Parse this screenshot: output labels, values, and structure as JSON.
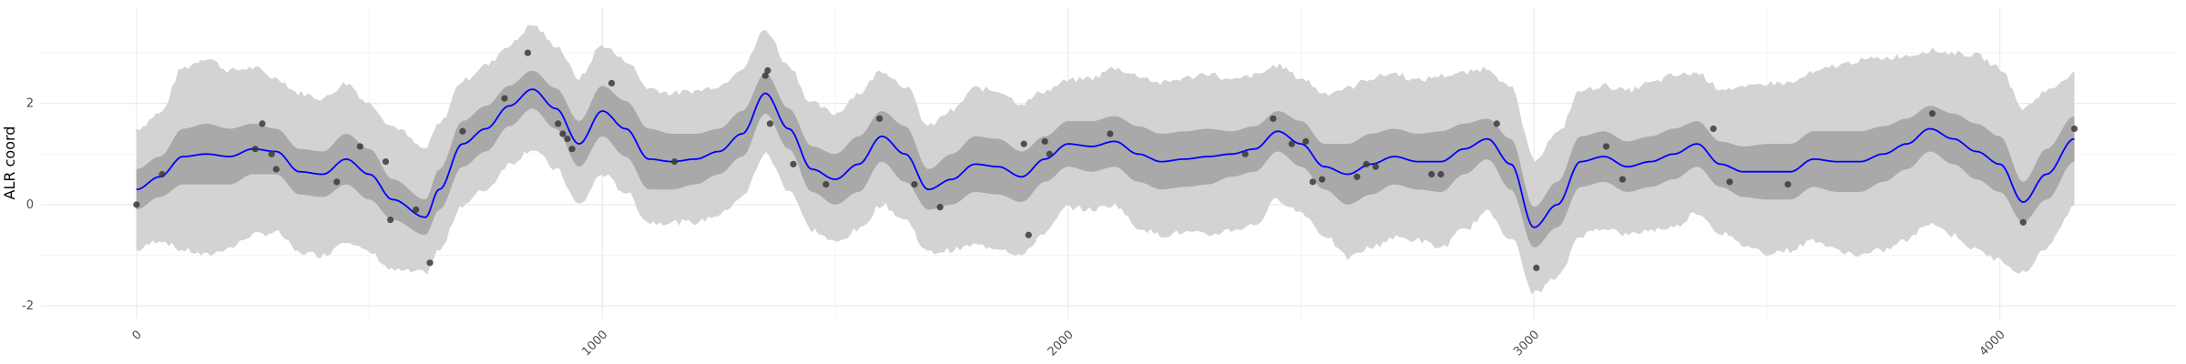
{
  "chart_data": {
    "type": "line",
    "title": "",
    "xlabel": "",
    "ylabel": "ALR coord",
    "xlim": [
      -205,
      4380
    ],
    "ylim": [
      -2.25,
      3.9
    ],
    "x_ticks": [
      0,
      1000,
      2000,
      3000,
      4000
    ],
    "x_tick_labels": [
      "0",
      "1000",
      "2000",
      "3000",
      "4000"
    ],
    "y_ticks": [
      -2,
      0,
      2
    ],
    "y_tick_labels": [
      "-2",
      "0",
      "2"
    ],
    "grid": true,
    "legend": "none",
    "colors": {
      "mean_line": "#0000ff",
      "inner_band": "#a9a9a9",
      "outer_band": "#d3d3d3",
      "points": "#3a3a3a",
      "grid": "#ebebeb",
      "background": "#ffffff"
    },
    "series": [
      {
        "role": "mean",
        "x": [
          0,
          50,
          100,
          150,
          200,
          250,
          300,
          350,
          400,
          450,
          500,
          550,
          620,
          650,
          700,
          750,
          800,
          850,
          900,
          950,
          1000,
          1050,
          1100,
          1150,
          1200,
          1250,
          1300,
          1350,
          1400,
          1450,
          1500,
          1550,
          1600,
          1650,
          1700,
          1750,
          1800,
          1850,
          1900,
          1950,
          2000,
          2050,
          2100,
          2150,
          2200,
          2250,
          2300,
          2350,
          2400,
          2450,
          2500,
          2550,
          2600,
          2650,
          2700,
          2750,
          2800,
          2850,
          2900,
          2950,
          3000,
          3050,
          3100,
          3150,
          3200,
          3250,
          3300,
          3350,
          3400,
          3450,
          3500,
          3550,
          3600,
          3650,
          3700,
          3750,
          3800,
          3850,
          3900,
          3950,
          4000,
          4050,
          4100,
          4160
        ],
        "y": [
          0.3,
          0.55,
          0.95,
          1.0,
          0.95,
          1.1,
          1.05,
          0.65,
          0.6,
          0.9,
          0.6,
          0.1,
          -0.25,
          0.3,
          1.2,
          1.5,
          1.95,
          2.28,
          1.9,
          1.2,
          1.85,
          1.5,
          0.9,
          0.85,
          0.9,
          1.05,
          1.4,
          2.2,
          1.5,
          0.7,
          0.5,
          0.8,
          1.35,
          1.0,
          0.3,
          0.5,
          0.8,
          0.75,
          0.55,
          0.9,
          1.2,
          1.15,
          1.25,
          1.0,
          0.85,
          0.9,
          0.95,
          1.0,
          1.1,
          1.45,
          1.2,
          0.75,
          0.6,
          0.8,
          0.95,
          0.85,
          0.85,
          1.1,
          1.3,
          0.8,
          -0.45,
          0.0,
          0.85,
          0.95,
          0.75,
          0.85,
          1.0,
          1.2,
          0.8,
          0.65,
          0.65,
          0.65,
          0.9,
          0.85,
          0.85,
          1.0,
          1.2,
          1.5,
          1.3,
          1.05,
          0.8,
          0.05,
          0.6,
          1.3
        ]
      },
      {
        "role": "inner_band",
        "x": [
          0,
          50,
          100,
          150,
          200,
          250,
          300,
          350,
          400,
          450,
          500,
          550,
          620,
          650,
          700,
          750,
          800,
          850,
          900,
          950,
          1000,
          1050,
          1100,
          1150,
          1200,
          1250,
          1300,
          1350,
          1400,
          1450,
          1500,
          1550,
          1600,
          1650,
          1700,
          1750,
          1800,
          1850,
          1900,
          1950,
          2000,
          2050,
          2100,
          2150,
          2200,
          2250,
          2300,
          2350,
          2400,
          2450,
          2500,
          2550,
          2600,
          2650,
          2700,
          2750,
          2800,
          2850,
          2900,
          2950,
          3000,
          3050,
          3100,
          3150,
          3200,
          3250,
          3300,
          3350,
          3400,
          3450,
          3500,
          3550,
          3600,
          3650,
          3700,
          3750,
          3800,
          3850,
          3900,
          3950,
          4000,
          4050,
          4100,
          4160
        ],
        "lower": [
          -0.1,
          0.15,
          0.4,
          0.4,
          0.4,
          0.6,
          0.6,
          0.2,
          0.15,
          0.4,
          0.1,
          -0.3,
          -0.6,
          -0.1,
          0.75,
          1.05,
          1.55,
          1.9,
          1.5,
          0.75,
          1.35,
          0.95,
          0.3,
          0.3,
          0.4,
          0.6,
          0.95,
          1.8,
          1.1,
          0.25,
          0.0,
          0.25,
          0.85,
          0.45,
          -0.1,
          0.0,
          0.25,
          0.2,
          0.05,
          0.45,
          0.75,
          0.65,
          0.75,
          0.45,
          0.3,
          0.35,
          0.4,
          0.55,
          0.65,
          1.05,
          0.75,
          0.3,
          0.0,
          0.2,
          0.4,
          0.3,
          0.25,
          0.6,
          0.9,
          0.3,
          -0.85,
          -0.45,
          0.35,
          0.45,
          0.25,
          0.35,
          0.5,
          0.75,
          0.35,
          0.15,
          0.1,
          0.1,
          0.35,
          0.25,
          0.25,
          0.45,
          0.7,
          1.05,
          0.8,
          0.5,
          0.25,
          -0.35,
          0.1,
          0.85
        ],
        "upper": [
          0.7,
          0.95,
          1.5,
          1.6,
          1.5,
          1.6,
          1.5,
          1.1,
          1.05,
          1.4,
          1.1,
          0.5,
          0.1,
          0.7,
          1.65,
          1.95,
          2.35,
          2.65,
          2.3,
          1.65,
          2.35,
          2.05,
          1.5,
          1.4,
          1.4,
          1.5,
          1.85,
          2.6,
          1.9,
          1.15,
          1.0,
          1.35,
          1.85,
          1.55,
          0.7,
          1.0,
          1.35,
          1.3,
          1.05,
          1.35,
          1.65,
          1.65,
          1.75,
          1.55,
          1.4,
          1.45,
          1.5,
          1.45,
          1.55,
          1.85,
          1.65,
          1.2,
          1.2,
          1.4,
          1.5,
          1.4,
          1.45,
          1.6,
          1.7,
          1.3,
          -0.05,
          0.45,
          1.35,
          1.45,
          1.25,
          1.35,
          1.5,
          1.65,
          1.25,
          1.15,
          1.2,
          1.2,
          1.45,
          1.45,
          1.45,
          1.55,
          1.7,
          1.95,
          1.8,
          1.6,
          1.35,
          0.45,
          1.1,
          1.75
        ]
      },
      {
        "role": "outer_band",
        "x": [
          0,
          50,
          100,
          150,
          200,
          250,
          300,
          350,
          400,
          450,
          500,
          550,
          620,
          650,
          700,
          750,
          800,
          850,
          900,
          950,
          1000,
          1050,
          1100,
          1150,
          1200,
          1250,
          1300,
          1350,
          1400,
          1450,
          1500,
          1550,
          1600,
          1650,
          1700,
          1750,
          1800,
          1850,
          1900,
          1950,
          2000,
          2050,
          2100,
          2150,
          2200,
          2250,
          2300,
          2350,
          2400,
          2450,
          2500,
          2550,
          2600,
          2650,
          2700,
          2750,
          2800,
          2850,
          2900,
          2950,
          3000,
          3050,
          3100,
          3150,
          3200,
          3250,
          3300,
          3350,
          3400,
          3450,
          3500,
          3550,
          3600,
          3650,
          3700,
          3750,
          3800,
          3850,
          3900,
          3950,
          4000,
          4050,
          4100,
          4160
        ],
        "lower": [
          -0.9,
          -0.7,
          -0.9,
          -1.0,
          -0.85,
          -0.6,
          -0.55,
          -0.95,
          -1.0,
          -0.7,
          -0.95,
          -1.3,
          -1.35,
          -0.9,
          0.0,
          0.3,
          0.8,
          1.1,
          0.7,
          0.0,
          0.6,
          0.25,
          -0.35,
          -0.35,
          -0.35,
          -0.2,
          0.15,
          1.0,
          0.3,
          -0.5,
          -0.75,
          -0.5,
          0.0,
          -0.3,
          -0.95,
          -0.9,
          -0.8,
          -0.85,
          -1.0,
          -0.55,
          -0.05,
          -0.1,
          0.0,
          -0.45,
          -0.6,
          -0.55,
          -0.6,
          -0.5,
          -0.4,
          0.1,
          -0.15,
          -0.6,
          -1.05,
          -0.85,
          -0.65,
          -0.7,
          -0.85,
          -0.5,
          -0.15,
          -0.65,
          -1.75,
          -1.45,
          -0.6,
          -0.45,
          -0.6,
          -0.5,
          -0.45,
          -0.15,
          -0.55,
          -0.8,
          -0.95,
          -0.9,
          -0.7,
          -0.9,
          -1.0,
          -0.9,
          -0.7,
          -0.35,
          -0.6,
          -0.9,
          -1.1,
          -1.35,
          -0.85,
          -0.05
        ],
        "upper": [
          1.5,
          1.8,
          2.7,
          2.9,
          2.65,
          2.7,
          2.5,
          2.2,
          2.1,
          2.4,
          2.0,
          1.55,
          1.1,
          1.6,
          2.45,
          2.75,
          3.15,
          3.55,
          3.15,
          2.5,
          3.15,
          2.85,
          2.3,
          2.2,
          2.25,
          2.35,
          2.7,
          3.45,
          2.75,
          2.0,
          1.8,
          2.2,
          2.65,
          2.35,
          1.55,
          1.85,
          2.3,
          2.25,
          2.0,
          2.25,
          2.45,
          2.5,
          2.7,
          2.55,
          2.4,
          2.5,
          2.6,
          2.45,
          2.55,
          2.75,
          2.5,
          2.2,
          2.3,
          2.5,
          2.6,
          2.45,
          2.55,
          2.6,
          2.7,
          2.3,
          0.9,
          1.4,
          2.25,
          2.35,
          2.25,
          2.4,
          2.55,
          2.6,
          2.3,
          2.3,
          2.4,
          2.4,
          2.6,
          2.75,
          2.85,
          2.9,
          2.95,
          3.05,
          3.0,
          2.95,
          2.7,
          1.9,
          2.25,
          2.6
        ]
      },
      {
        "role": "observations",
        "x": [
          0,
          55,
          255,
          270,
          290,
          300,
          430,
          480,
          535,
          545,
          600,
          630,
          700,
          790,
          840,
          905,
          915,
          925,
          935,
          1020,
          1155,
          1350,
          1355,
          1360,
          1410,
          1480,
          1595,
          1670,
          1725,
          1905,
          1915,
          1950,
          1960,
          2090,
          2380,
          2440,
          2480,
          2510,
          2525,
          2545,
          2620,
          2640,
          2660,
          2780,
          2800,
          2920,
          3005,
          3155,
          3190,
          3385,
          3420,
          3545,
          3855,
          4050,
          4160
        ],
        "y": [
          0.0,
          0.6,
          1.1,
          1.6,
          1.0,
          0.7,
          0.45,
          1.15,
          0.85,
          -0.3,
          -0.1,
          -1.15,
          1.45,
          2.1,
          3.0,
          1.6,
          1.4,
          1.3,
          1.1,
          2.4,
          0.85,
          2.55,
          2.65,
          1.6,
          0.8,
          0.4,
          1.7,
          0.4,
          -0.05,
          1.2,
          -0.6,
          1.25,
          1.0,
          1.4,
          1.0,
          1.7,
          1.2,
          1.25,
          0.45,
          0.5,
          0.55,
          0.8,
          0.75,
          0.6,
          0.6,
          1.6,
          -1.25,
          1.15,
          0.5,
          1.5,
          0.45,
          0.4,
          1.8,
          -0.35,
          1.5
        ]
      }
    ]
  }
}
